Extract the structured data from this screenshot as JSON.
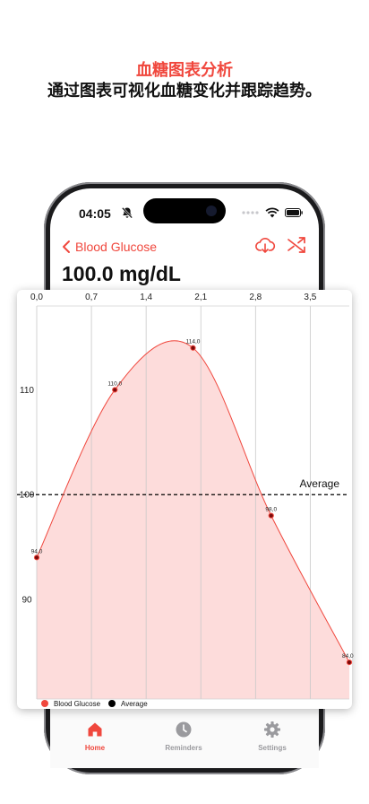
{
  "promo": {
    "title": "血糖图表分析",
    "subtitle": "通过图表可视化血糖变化并跟踪趋势。"
  },
  "status_bar": {
    "time": "04:05",
    "icons": [
      "bell-slash-icon",
      "wifi-icon",
      "battery-icon"
    ]
  },
  "nav": {
    "back_label": "Blood Glucose",
    "actions": [
      "cloud-download-icon",
      "shuffle-icon"
    ]
  },
  "reading": {
    "value": "100.0 mg/dL"
  },
  "colors": {
    "accent": "#f0473d",
    "fill": "#fddcdb",
    "average": "#000000",
    "inactive": "#9a9a9e"
  },
  "chart_data": {
    "type": "area",
    "x_tick_labels": [
      "0,0",
      "0,7",
      "1,4",
      "2,1",
      "2,8",
      "3,5"
    ],
    "y_tick_labels": [
      "90",
      "100",
      "110"
    ],
    "x_ticks": [
      0,
      0.7,
      1.4,
      2.1,
      2.8,
      3.5
    ],
    "y_ticks": [
      90,
      100,
      110
    ],
    "xlim": [
      0,
      4.0
    ],
    "ylim": [
      80.5,
      118
    ],
    "series": [
      {
        "name": "Blood Glucose",
        "x": [
          0,
          1,
          2,
          3,
          4
        ],
        "y": [
          94,
          110,
          114,
          98,
          84
        ],
        "point_labels": [
          "94,0",
          "110,0",
          "114,0",
          "98,0",
          "84,0"
        ],
        "curve": "smooth",
        "color": "#f0473d"
      },
      {
        "name": "Average",
        "value": 100,
        "style": "dashed",
        "color": "#000000"
      }
    ],
    "annotations": [
      {
        "text": "Average"
      }
    ],
    "legend": {
      "placement": "bottom-left",
      "entries": [
        "Blood Glucose",
        "Average"
      ]
    },
    "grid": {
      "vertical": true,
      "horizontal": false
    }
  },
  "tabs": [
    {
      "label": "Home",
      "icon": "house-icon",
      "active": true
    },
    {
      "label": "Reminders",
      "icon": "clock-icon",
      "active": false
    },
    {
      "label": "Settings",
      "icon": "gear-icon",
      "active": false
    }
  ]
}
